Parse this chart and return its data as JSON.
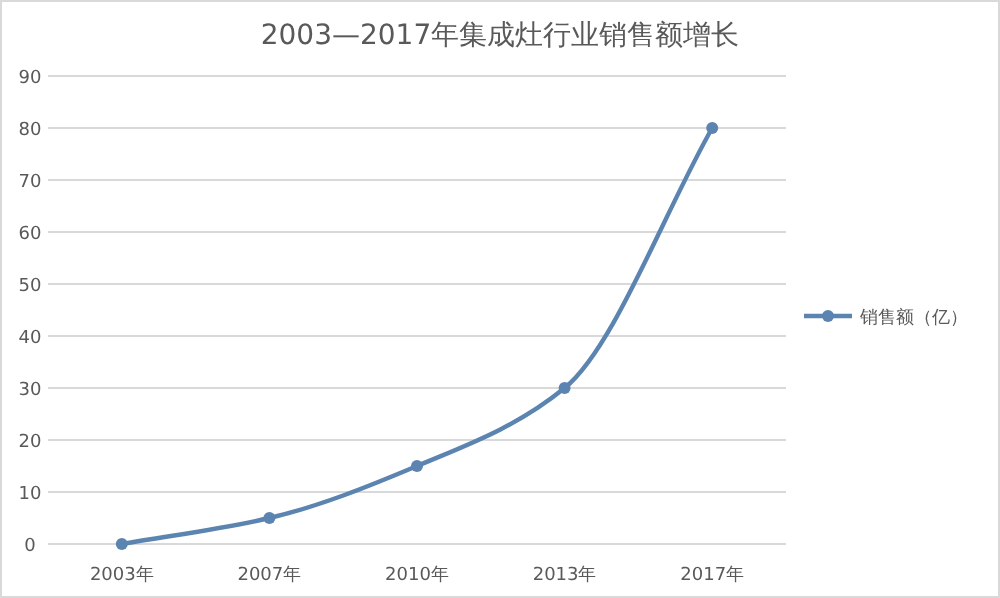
{
  "chart_data": {
    "type": "line",
    "title": "2003—2017年集成灶行业销售额增长",
    "categories": [
      "2003年",
      "2007年",
      "2010年",
      "2013年",
      "2017年"
    ],
    "series": [
      {
        "name": "销售额（亿）",
        "color": "#5b84b1",
        "values": [
          0,
          5,
          15,
          30,
          80
        ]
      }
    ],
    "ylim": [
      0,
      90
    ],
    "yticks": [
      0,
      10,
      20,
      30,
      40,
      50,
      60,
      70,
      80,
      90
    ],
    "grid": "y",
    "legend": "right",
    "marker": "circle",
    "line_style": "solid"
  }
}
